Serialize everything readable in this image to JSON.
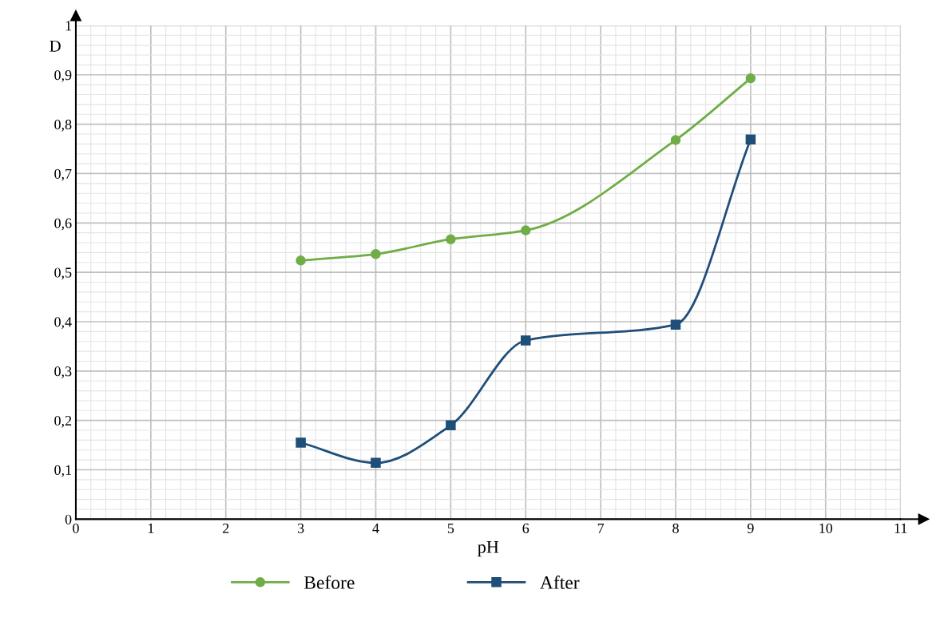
{
  "chart_data": {
    "type": "line",
    "xlabel": "pH",
    "ylabel": "D",
    "x": [
      3,
      4,
      5,
      6,
      8,
      9
    ],
    "series": [
      {
        "name": "Before",
        "color": "#70ad47",
        "marker": "circle",
        "values": [
          0.524,
          0.537,
          0.567,
          0.585,
          0.768,
          0.893
        ]
      },
      {
        "name": "After",
        "color": "#1f4e79",
        "marker": "square",
        "values": [
          0.155,
          0.114,
          0.19,
          0.362,
          0.394,
          0.769
        ]
      }
    ],
    "xlim": [
      0,
      11
    ],
    "xticks": [
      0,
      1,
      2,
      3,
      4,
      5,
      6,
      7,
      8,
      9,
      10,
      11
    ],
    "ylim": [
      0,
      1
    ],
    "yticks": [
      0,
      {
        "value": 0.1,
        "label": "0,1"
      },
      {
        "value": 0.2,
        "label": "0,2"
      },
      {
        "value": 0.3,
        "label": "0,3"
      },
      {
        "value": 0.4,
        "label": "0,4"
      },
      {
        "value": 0.5,
        "label": "0,5"
      },
      {
        "value": 0.6,
        "label": "0,6"
      },
      {
        "value": 0.7,
        "label": "0,7"
      },
      {
        "value": 0.8,
        "label": "0,8"
      },
      {
        "value": 0.9,
        "label": "0,9"
      },
      1
    ],
    "grid": true,
    "legend": "bottom",
    "line_style": "solid"
  }
}
